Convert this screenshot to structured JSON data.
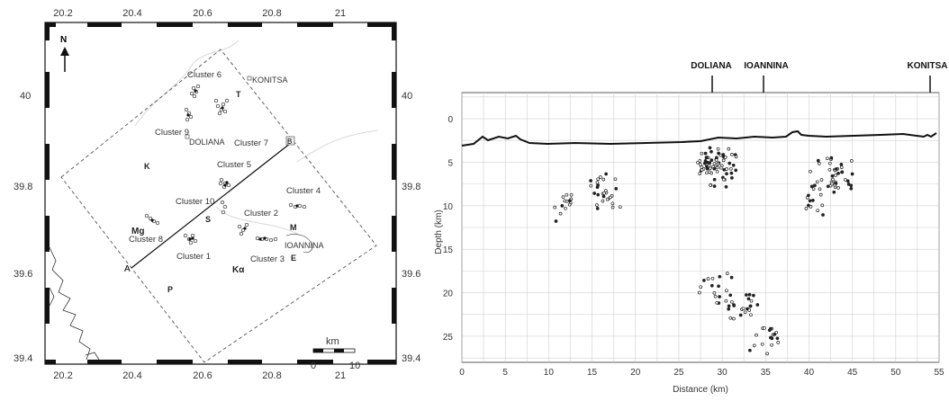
{
  "map": {
    "north_label": "N",
    "lon_ticks": [
      "20.2",
      "20.4",
      "20.6",
      "20.8",
      "21"
    ],
    "lat_ticks": [
      "40",
      "39.8",
      "39.6",
      "39.4"
    ],
    "place_labels": {
      "konitsa": "KONITSA",
      "doliana": "DOLIANA",
      "ioannina": "IOANNINA",
      "t": "T",
      "k": "K",
      "mg": "Mg",
      "s": "S",
      "m": "M",
      "e": "E",
      "ka": "Kα",
      "p": "P",
      "a": "A",
      "b": "B"
    },
    "clusters": [
      "Cluster 6",
      "Cluster 9",
      "Cluster 7",
      "Cluster 5",
      "Cluster 10",
      "Cluster 4",
      "Cluster 2",
      "Cluster 8",
      "Cluster 1",
      "Cluster 3"
    ],
    "scale": {
      "unit": "km",
      "start": "0",
      "end": "10"
    }
  },
  "section": {
    "ylabel": "Depth (km)",
    "xlabel": "Distance (km)",
    "x_ticks": [
      "0",
      "5",
      "10",
      "15",
      "20",
      "25",
      "30",
      "35",
      "40",
      "45",
      "50",
      "55"
    ],
    "y_ticks": [
      "0",
      "5",
      "10",
      "15",
      "20",
      "25"
    ],
    "towns": [
      "DOLIANA",
      "IOANNINA",
      "KONITSA"
    ],
    "town_distance_km": [
      28.5,
      34.5,
      53
    ]
  }
}
